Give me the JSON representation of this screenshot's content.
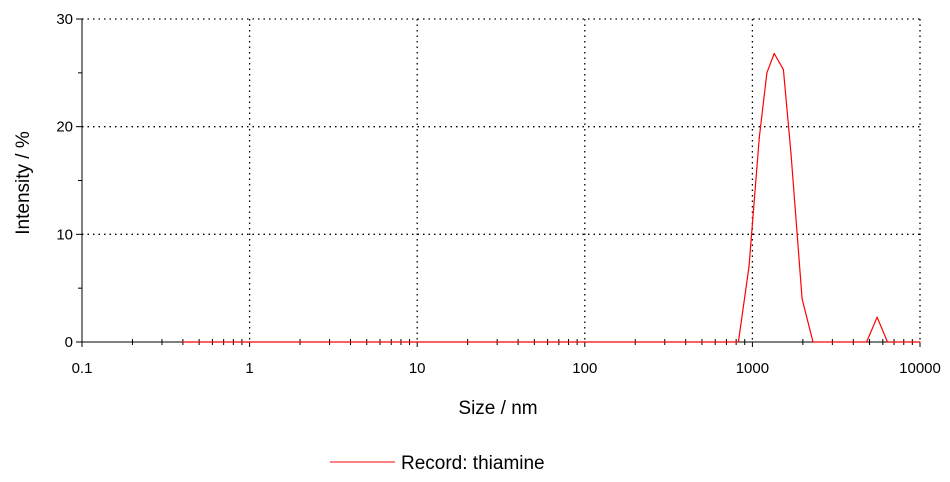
{
  "chart_data": {
    "type": "line",
    "xlabel": "Size / nm",
    "ylabel": "Intensity / %",
    "x_scale": "log",
    "xlim": [
      0.1,
      10000
    ],
    "ylim": [
      0,
      30
    ],
    "x_tick_labels": [
      "0.1",
      "1",
      "10",
      "100",
      "1000",
      "10000"
    ],
    "y_tick_labels": [
      "0",
      "10",
      "20",
      "30"
    ],
    "grid": true,
    "legend_position": "bottom",
    "series": [
      {
        "name": "Record: thiamine",
        "color": "#ff0000",
        "x": [
          0.4,
          1,
          10,
          100,
          825,
          955,
          1100,
          1220,
          1350,
          1530,
          1700,
          1980,
          2300,
          4800,
          5550,
          6400,
          10000
        ],
        "y": [
          0,
          0,
          0,
          0,
          0,
          7,
          19,
          25,
          26.8,
          25.3,
          17.5,
          4,
          0,
          0,
          2.3,
          0,
          0
        ]
      }
    ]
  }
}
